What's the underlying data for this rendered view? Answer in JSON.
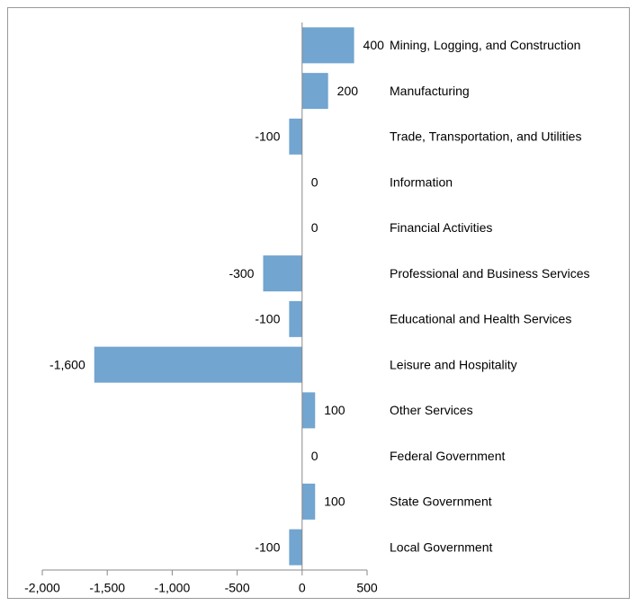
{
  "chart_data": {
    "type": "bar",
    "orientation": "horizontal",
    "categories": [
      "Mining, Logging, and Construction",
      "Manufacturing",
      "Trade, Transportation, and Utilities",
      "Information",
      "Financial Activities",
      "Professional and Business Services",
      "Educational and Health Services",
      "Leisure and Hospitality",
      "Other Services",
      "Federal Government",
      "State Government",
      "Local Government"
    ],
    "values": [
      400,
      200,
      -100,
      0,
      0,
      -300,
      -100,
      -1600,
      100,
      0,
      100,
      -100
    ],
    "value_labels": [
      "400",
      "200",
      "-100",
      "0",
      "0",
      "-300",
      "-100",
      "-1,600",
      "100",
      "0",
      "100",
      "-100"
    ],
    "color": "#72a5d0",
    "xlim": [
      -2000,
      500
    ],
    "xticks": [
      {
        "value": -2000,
        "label": "-2,000"
      },
      {
        "value": -1500,
        "label": "-1,500"
      },
      {
        "value": -1000,
        "label": "-1,000"
      },
      -500,
      0,
      500
    ],
    "grid": false
  }
}
